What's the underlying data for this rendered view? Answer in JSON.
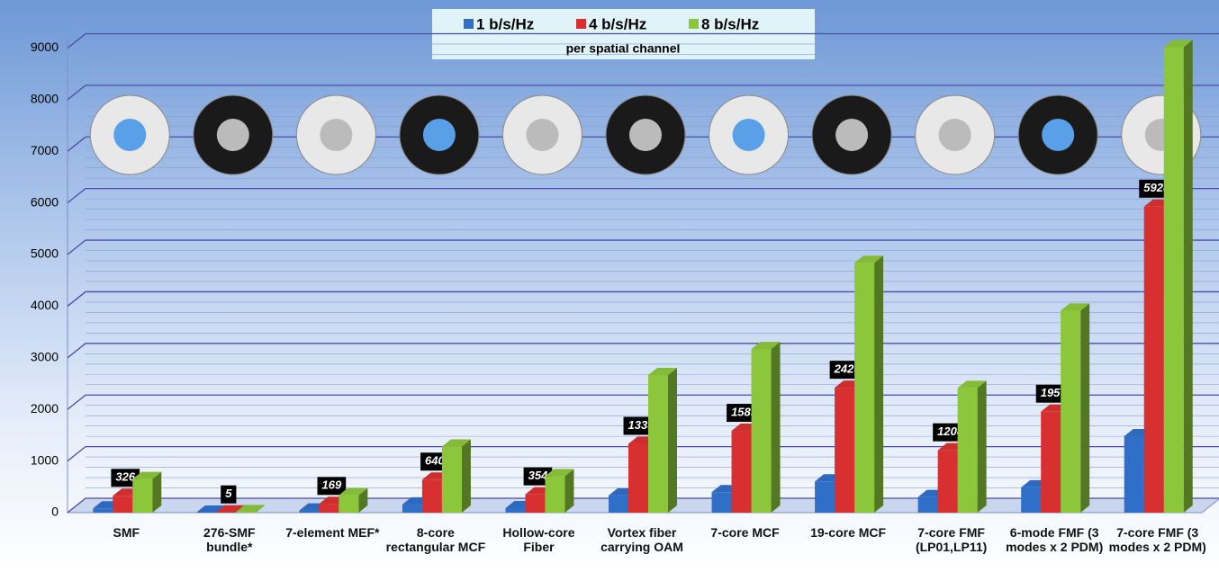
{
  "chart_data": {
    "type": "bar3d",
    "legend_subtitle": "per spatial channel",
    "categories": [
      "SMF",
      "276-SMF bundle*",
      "7-element MEF*",
      "8-core rectangular MCF",
      "Hollow-core Fiber",
      "Vortex fiber carrying OAM",
      "7-core MCF",
      "19-core MCF",
      "7-core FMF (LP01,LP11)",
      "6-mode FMF (3 modes x 2 PDM)",
      "7-core FMF (3 modes x 2 PDM)"
    ],
    "series": [
      {
        "name": "1 b/s/Hz",
        "color": "#2f6fc8",
        "values": [
          82,
          1,
          42,
          160,
          88,
          333,
          396,
          605,
          302,
          489,
          1482
        ]
      },
      {
        "name": "4 b/s/Hz",
        "color": "#d83030",
        "values": [
          326,
          5,
          169,
          640,
          354,
          1333,
          1585,
          2420,
          1208,
          1957,
          5928
        ],
        "labeled": true
      },
      {
        "name": "8 b/s/Hz",
        "color": "#8cc63a",
        "values": [
          652,
          10,
          338,
          1280,
          708,
          2666,
          3170,
          4840,
          2416,
          3914,
          9020
        ]
      }
    ],
    "ylim": [
      0,
      9200
    ],
    "yticks": [
      0,
      1000,
      2000,
      3000,
      4000,
      5000,
      6000,
      7000,
      8000,
      9000
    ],
    "grid": true
  }
}
